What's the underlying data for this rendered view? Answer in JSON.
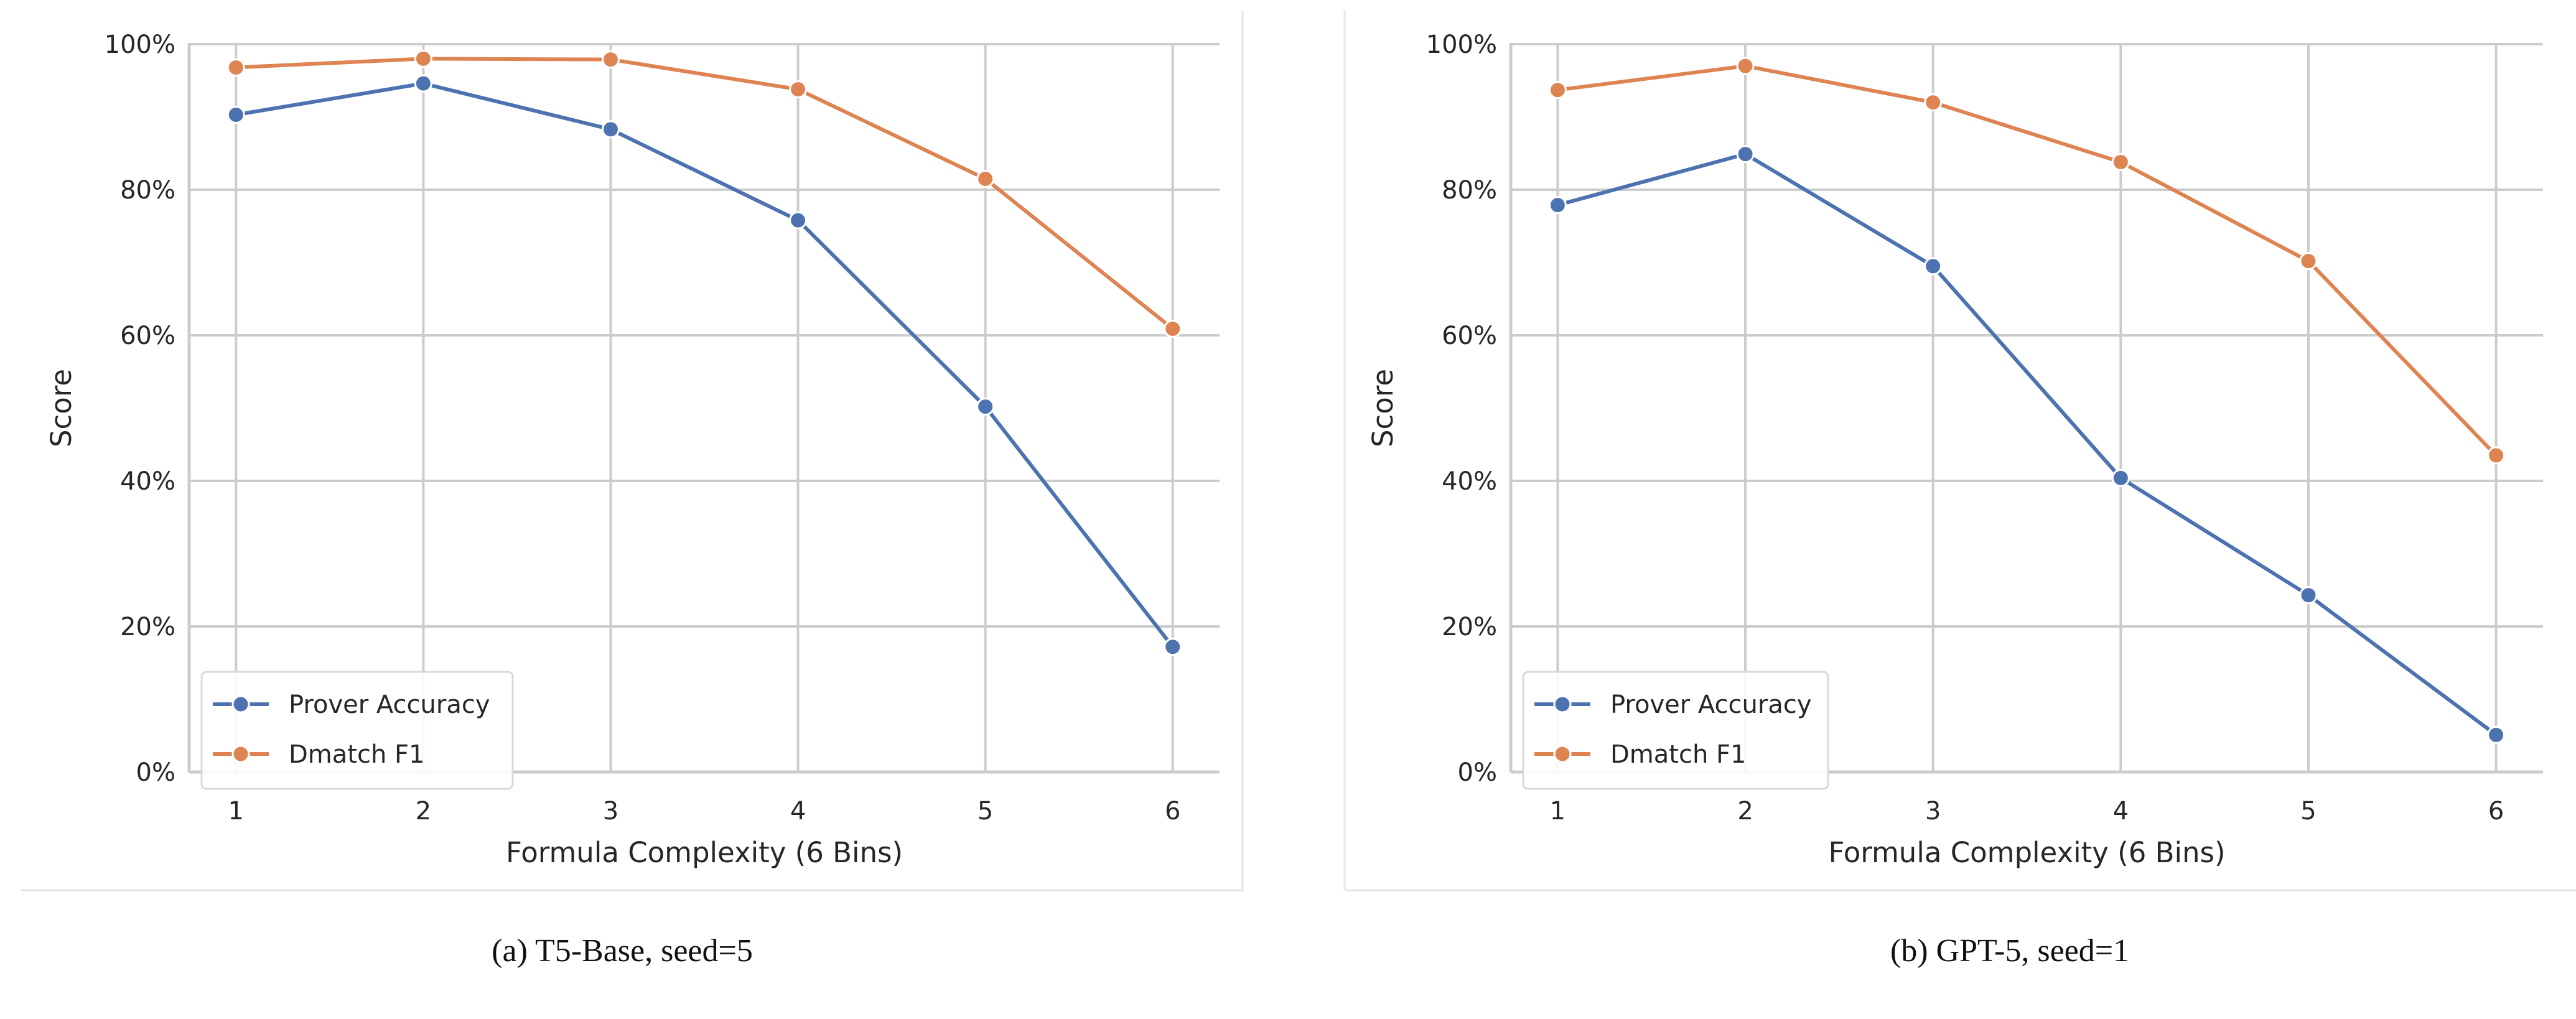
{
  "chart_data": [
    {
      "type": "line",
      "caption": "(a) T5-Base, seed=5",
      "xlabel": "Formula Complexity (6 Bins)",
      "ylabel": "Score",
      "x": [
        1,
        2,
        3,
        4,
        5,
        6
      ],
      "x_tick_labels": [
        "1",
        "2",
        "3",
        "4",
        "5",
        "6"
      ],
      "y_tick_labels": [
        "0%",
        "20%",
        "40%",
        "60%",
        "80%",
        "100%"
      ],
      "y_ticks": [
        0,
        0.2,
        0.4,
        0.6,
        0.8,
        1.0
      ],
      "ylim": [
        0,
        1.0
      ],
      "xlim": [
        0.75,
        6.25
      ],
      "grid": true,
      "legend_position": "lower-left",
      "series": [
        {
          "name": "Prover Accuracy",
          "color": "#4c72b0",
          "values": [
            0.903,
            0.946,
            0.883,
            0.758,
            0.502,
            0.172
          ]
        },
        {
          "name": "Dmatch F1",
          "color": "#dd8452",
          "values": [
            0.968,
            0.98,
            0.979,
            0.938,
            0.815,
            0.609
          ]
        }
      ]
    },
    {
      "type": "line",
      "caption": "(b) GPT-5, seed=1",
      "xlabel": "Formula Complexity (6 Bins)",
      "ylabel": "Score",
      "x": [
        1,
        2,
        3,
        4,
        5,
        6
      ],
      "x_tick_labels": [
        "1",
        "2",
        "3",
        "4",
        "5",
        "6"
      ],
      "y_tick_labels": [
        "0%",
        "20%",
        "40%",
        "60%",
        "80%",
        "100%"
      ],
      "y_ticks": [
        0,
        0.2,
        0.4,
        0.6,
        0.8,
        1.0
      ],
      "ylim": [
        0,
        1.0
      ],
      "xlim": [
        0.75,
        6.25
      ],
      "grid": true,
      "legend_position": "lower-left",
      "series": [
        {
          "name": "Prover Accuracy",
          "color": "#4c72b0",
          "values": [
            0.779,
            0.849,
            0.695,
            0.404,
            0.243,
            0.051
          ]
        },
        {
          "name": "Dmatch F1",
          "color": "#dd8452",
          "values": [
            0.937,
            0.97,
            0.92,
            0.838,
            0.702,
            0.435
          ]
        }
      ]
    }
  ]
}
